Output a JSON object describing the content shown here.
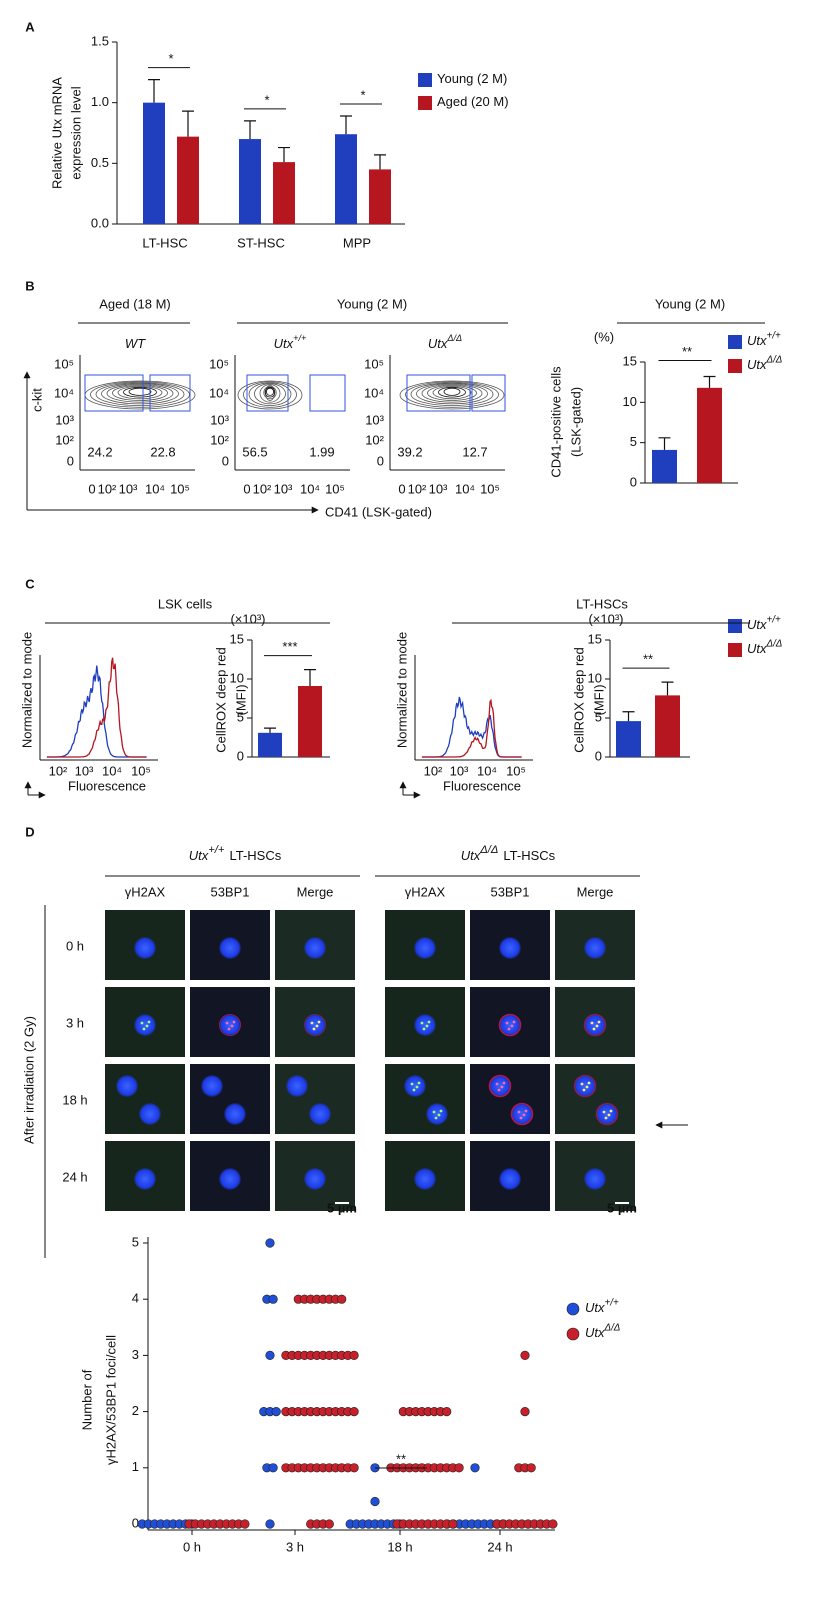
{
  "panels": [
    "A",
    "B",
    "C",
    "D"
  ],
  "flow": {
    "headers": [
      "Aged (18 M)",
      "Young (2 M)"
    ],
    "plots": [
      {
        "name": "WT",
        "gates": [
          24.2,
          22.8
        ]
      },
      {
        "name": "Utx",
        "superscript": "+/+",
        "gates": [
          56.5,
          1.99
        ]
      },
      {
        "name": "Utx",
        "superscript": "Δ/Δ",
        "gates": [
          39.2,
          12.7
        ]
      }
    ],
    "yticks": [
      "10⁵",
      "10⁴",
      "10³",
      "10²",
      "0"
    ],
    "xticks": [
      "0",
      "10²",
      "10³",
      "10⁴",
      "10⁵"
    ],
    "ylabel": "c-kit",
    "xlabel": "CD41 (LSK-gated)"
  },
  "histograms": {
    "groups": [
      "LSK cells",
      "LT-HSCs"
    ],
    "ylabel": "Normalized to mode",
    "xlabel": "Fluorescence",
    "xticks": [
      "10²",
      "10³",
      "10⁴",
      "10⁵"
    ]
  },
  "microscopy": {
    "groups": [
      {
        "name": "Utx",
        "superscript": "+/+",
        "suffix": "LT-HSCs"
      },
      {
        "name": "Utx",
        "superscript": "Δ/Δ",
        "suffix": "LT-HSCs"
      }
    ],
    "channels": [
      "γH2AX",
      "53BP1",
      "Merge"
    ],
    "rows": [
      "0 h",
      "3 h",
      "18 h",
      "24 h"
    ],
    "side_label": "After irradiation (2 Gy)",
    "scale_bar": "5 µm"
  },
  "chart_data": [
    {
      "type": "bar",
      "categories": [
        "LT-HSC",
        "ST-HSC",
        "MPP"
      ],
      "ylabel_lines": [
        "Relative Utx mRNA",
        "expression level"
      ],
      "ylim": [
        0,
        1.5
      ],
      "yticks": [
        {
          "value": 0,
          "label": "0.0"
        },
        0.5,
        {
          "value": 1,
          "label": "1.0"
        },
        1.5
      ],
      "series": [
        {
          "name": "Young (2 M)",
          "color": "#1f3fbf",
          "values": [
            1.0,
            0.7,
            0.74
          ],
          "errors": [
            0.19,
            0.15,
            0.15
          ]
        },
        {
          "name": "Aged (20 M)",
          "color": "#b51620",
          "values": [
            0.72,
            0.51,
            0.45
          ],
          "errors": [
            0.21,
            0.12,
            0.12
          ]
        }
      ],
      "significance": [
        "*",
        "*",
        "*"
      ],
      "legend": true
    },
    {
      "type": "bar",
      "title": "Young (2 M)",
      "unit": "(%)",
      "ylabel_lines": [
        "CD41-positive cells",
        "(LSK-gated)"
      ],
      "ylim": [
        0,
        15
      ],
      "yticks": [
        0,
        5,
        10,
        15
      ],
      "series": [
        {
          "name": "Utx",
          "superscript": "+/+",
          "color": "#1f3fbf",
          "values": [
            4.1
          ],
          "errors": [
            1.5
          ]
        },
        {
          "name": "Utx",
          "superscript": "Δ/Δ",
          "color": "#b51620",
          "values": [
            11.8
          ],
          "errors": [
            1.4
          ]
        }
      ],
      "significance": [
        "**"
      ],
      "legend": true
    },
    {
      "type": "bar",
      "unit": "(×10³)",
      "ylabel_lines": [
        "CellROX deep red",
        "(MFI)"
      ],
      "ylim": [
        0,
        15
      ],
      "yticks": [
        0,
        5,
        10,
        15
      ],
      "series": [
        {
          "name": "Utx",
          "superscript": "+/+",
          "color": "#1f3fbf",
          "values": [
            3.1
          ],
          "errors": [
            0.6
          ]
        },
        {
          "name": "Utx",
          "superscript": "Δ/Δ",
          "color": "#b51620",
          "values": [
            9.1
          ],
          "errors": [
            2.1
          ]
        }
      ],
      "significance": [
        "***"
      ]
    },
    {
      "type": "bar",
      "unit": "(×10³)",
      "ylabel_lines": [
        "CellROX deep red",
        "(MFI)"
      ],
      "ylim": [
        0,
        15
      ],
      "yticks": [
        0,
        5,
        10,
        15
      ],
      "series": [
        {
          "name": "Utx",
          "superscript": "+/+",
          "color": "#1f3fbf",
          "values": [
            4.6
          ],
          "errors": [
            1.2
          ]
        },
        {
          "name": "Utx",
          "superscript": "Δ/Δ",
          "color": "#b51620",
          "values": [
            7.9
          ],
          "errors": [
            1.7
          ]
        }
      ],
      "significance": [
        "**"
      ],
      "legend": true
    },
    {
      "type": "dot",
      "categories": [
        "0 h",
        "3 h",
        "18 h",
        "24 h"
      ],
      "ylabel_lines": [
        "Number of",
        "γH2AX/53BP1 foci/cell"
      ],
      "ylim": [
        0,
        5
      ],
      "yticks": [
        0,
        1,
        2,
        3,
        4,
        5
      ],
      "series": [
        {
          "name": "Utx",
          "superscript": "+/+",
          "color": "#1f4fd6",
          "values": [
            [
              0,
              0,
              0,
              0,
              0,
              0,
              0,
              0,
              0
            ],
            [
              5,
              4,
              4,
              3,
              2,
              2,
              2,
              1,
              1,
              0
            ],
            [
              1,
              0.4,
              0,
              0,
              0,
              0,
              0,
              0,
              0,
              0,
              0
            ],
            [
              1,
              0,
              0,
              0,
              0,
              0,
              0,
              0,
              0,
              0,
              0
            ]
          ]
        },
        {
          "name": "Utx",
          "superscript": "Δ/Δ",
          "color": "#c8202a",
          "values": [
            [
              0,
              0,
              0,
              0,
              0,
              0,
              0,
              0,
              0,
              0
            ],
            [
              4,
              4,
              4,
              4,
              4,
              4,
              4,
              4,
              3,
              3,
              3,
              3,
              3,
              3,
              3,
              3,
              3,
              3,
              3,
              3,
              2,
              2,
              2,
              2,
              2,
              2,
              2,
              2,
              2,
              2,
              2,
              2,
              1,
              1,
              1,
              1,
              1,
              1,
              1,
              1,
              1,
              1,
              1,
              1,
              0,
              0,
              0,
              0
            ],
            [
              2,
              2,
              2,
              2,
              2,
              2,
              2,
              2,
              1,
              1,
              1,
              1,
              1,
              1,
              1,
              1,
              1,
              1,
              1,
              1,
              0,
              0,
              0,
              0,
              0,
              0,
              0,
              0,
              0,
              0
            ],
            [
              3,
              2,
              1,
              1,
              1,
              0,
              0,
              0,
              0,
              0,
              0,
              0,
              0,
              0,
              0
            ]
          ]
        }
      ],
      "significance": "**",
      "legend": true
    }
  ]
}
